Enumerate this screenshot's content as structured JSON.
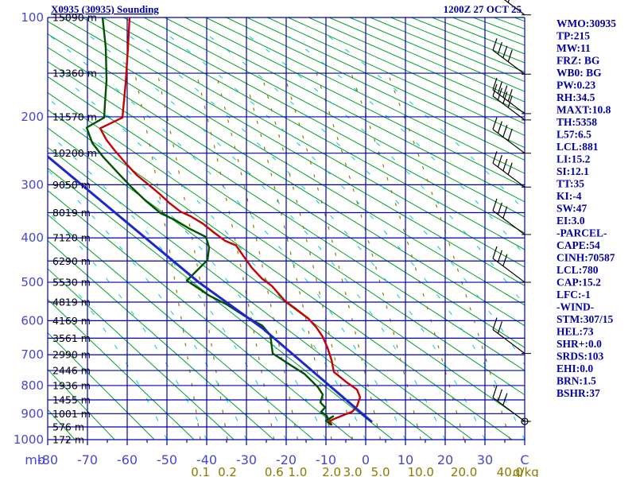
{
  "title": "X0935 (30935) Sounding",
  "datetime": "1200Z 27 OCT 25",
  "panel": {
    "lines": [
      "WMO:30935",
      "TP:215",
      "MW:11",
      "FRZ: BG",
      "WB0: BG",
      "PW:0.23",
      "RH:34.5",
      "MAXT:10.8",
      "TH:5358",
      "L57:6.5",
      "LCL:881",
      "LI:15.2",
      "SI:12.1",
      "TT:35",
      "KI:-4",
      "SW:47",
      "EI:3.0",
      "-PARCEL-",
      "CAPE:54",
      "CINH:70587",
      "LCL:780",
      "CAP:15.2",
      "LFC:-1",
      "-WIND-",
      "STM:307/15",
      "HEL:73",
      "SHR+:0.0",
      "SRDS:103",
      "EHI:0.0",
      "BRN:1.5",
      "BSHR:37"
    ]
  },
  "chart_data": {
    "type": "line",
    "diagram": "stuve-sounding",
    "plot": {
      "x0": 60,
      "x1": 660,
      "y0": 22,
      "y1": 553
    },
    "axes": {
      "pressure_mb": {
        "label": "mb",
        "min": 100,
        "max": 1000,
        "kappa": 0.286,
        "line_step": 50,
        "major_labels": [
          100,
          200,
          300,
          400,
          500,
          600,
          700,
          800,
          900,
          1000
        ]
      },
      "temperature_c": {
        "unit_label": "C",
        "min": -80,
        "max": 40,
        "tick_step": 10,
        "tick_labels": [
          -80,
          -70,
          -60,
          -50,
          -40,
          -30,
          -20,
          -10,
          0,
          10,
          20,
          30
        ]
      }
    },
    "height_labels": [
      [
        100,
        "15090 m"
      ],
      [
        150,
        "13360 m"
      ],
      [
        200,
        "11570 m"
      ],
      [
        250,
        "10200 m"
      ],
      [
        300,
        "9050 m"
      ],
      [
        350,
        "8019 m"
      ],
      [
        400,
        "7120 m"
      ],
      [
        450,
        "6290 m"
      ],
      [
        500,
        "5530 m"
      ],
      [
        550,
        "4819 m"
      ],
      [
        600,
        "4169 m"
      ],
      [
        650,
        "3561 m"
      ],
      [
        700,
        "2990 m"
      ],
      [
        750,
        "2446 m"
      ],
      [
        800,
        "1936 m"
      ],
      [
        850,
        "1455 m"
      ],
      [
        900,
        "1001 m"
      ],
      [
        950,
        "576 m"
      ],
      [
        1000,
        "172 m"
      ]
    ],
    "mixing_ratio": {
      "unit": "g/kg",
      "values": [
        0.1,
        0.2,
        0.6,
        1.0,
        2.0,
        3.0,
        5.0,
        10.0,
        20.0,
        40.0
      ],
      "labels": [
        "0.1",
        "0.2",
        "0.6",
        "1.0",
        "2.0",
        "3.0",
        "5.0",
        "10.0",
        "20.0",
        "40.0"
      ]
    },
    "dry_adiabats": {
      "theta_start": 200,
      "theta_end": 600,
      "step": 10
    },
    "moist_adiabats": {
      "surface_x_start": 210,
      "surface_x_end": 860,
      "step": 50,
      "k1": 0.45,
      "k2": 0.45
    },
    "series": [
      {
        "name": "temperature",
        "color": "#c80000",
        "width": 2.4,
        "points": [
          [
            -59.4,
            100
          ],
          [
            -59.8,
            125
          ],
          [
            -60.4,
            161
          ],
          [
            -61.2,
            201
          ],
          [
            -66.8,
            215
          ],
          [
            -65.2,
            231
          ],
          [
            -63,
            247
          ],
          [
            -60.4,
            265
          ],
          [
            -57.6,
            284
          ],
          [
            -54.6,
            300
          ],
          [
            -52,
            315
          ],
          [
            -49.4,
            332
          ],
          [
            -46.6,
            348
          ],
          [
            -44,
            357
          ],
          [
            -41,
            371
          ],
          [
            -38,
            390
          ],
          [
            -35.4,
            406
          ],
          [
            -32.6,
            416
          ],
          [
            -30.6,
            441
          ],
          [
            -28.6,
            466
          ],
          [
            -26,
            492
          ],
          [
            -23.6,
            509
          ],
          [
            -20.4,
            546
          ],
          [
            -17.2,
            571
          ],
          [
            -14.4,
            594
          ],
          [
            -12.4,
            619
          ],
          [
            -10.8,
            646
          ],
          [
            -9.6,
            679
          ],
          [
            -8.6,
            716
          ],
          [
            -8,
            755
          ],
          [
            -5,
            787
          ],
          [
            -2.2,
            814
          ],
          [
            -1.4,
            841
          ],
          [
            -2.2,
            873
          ],
          [
            -3.4,
            893
          ],
          [
            -6,
            908
          ],
          [
            -8,
            920
          ],
          [
            -9.2,
            929
          ],
          [
            -8.6,
            941
          ]
        ]
      },
      {
        "name": "dewpoint",
        "color": "#005200",
        "width": 2.4,
        "points": [
          [
            -66.2,
            100
          ],
          [
            -65.4,
            125
          ],
          [
            -65.2,
            157
          ],
          [
            -65.6,
            184
          ],
          [
            -65.8,
            201
          ],
          [
            -70.2,
            214
          ],
          [
            -68.8,
            235
          ],
          [
            -66,
            256
          ],
          [
            -62.4,
            280
          ],
          [
            -58.8,
            305
          ],
          [
            -55.2,
            329
          ],
          [
            -51.6,
            351
          ],
          [
            -48,
            364
          ],
          [
            -44.6,
            380
          ],
          [
            -40.2,
            398
          ],
          [
            -39.4,
            420
          ],
          [
            -39.8,
            448
          ],
          [
            -45,
            496
          ],
          [
            -39.4,
            533
          ],
          [
            -35,
            556
          ],
          [
            -30.6,
            586
          ],
          [
            -26,
            614
          ],
          [
            -24,
            641
          ],
          [
            -23.4,
            696
          ],
          [
            -22.4,
            704
          ],
          [
            -18.6,
            735
          ],
          [
            -15.4,
            761
          ],
          [
            -12,
            806
          ],
          [
            -10.8,
            831
          ],
          [
            -11.4,
            859
          ],
          [
            -10.2,
            877
          ],
          [
            -11.2,
            893
          ],
          [
            -9.8,
            908
          ],
          [
            -9.4,
            922
          ],
          [
            -8.2,
            910
          ],
          [
            -10,
            926
          ],
          [
            -8.8,
            941
          ]
        ]
      },
      {
        "name": "parcel",
        "color": "#1c28c8",
        "width": 3,
        "points": [
          [
            -80,
            255
          ],
          [
            -42,
            500
          ],
          [
            -26,
            621
          ],
          [
            1.4,
            929
          ]
        ]
      }
    ],
    "wind_barbs": [
      {
        "p": 98,
        "feathers": 4
      },
      {
        "p": 151,
        "feathers": 4
      },
      {
        "p": 196,
        "feathers": 4
      },
      {
        "p": 204,
        "feathers": 4
      },
      {
        "p": 250,
        "feathers": 4
      },
      {
        "p": 304,
        "feathers": 4
      },
      {
        "p": 393,
        "feathers": 3
      },
      {
        "p": 500,
        "feathers": 3
      },
      {
        "p": 696,
        "feathers": 2
      },
      {
        "p": 929,
        "feathers": 3,
        "circle": true
      }
    ]
  },
  "colors": {
    "grid": "#0000b4",
    "dry_adiabat": "#00a028",
    "moist_adiabat": "#00c8d2",
    "mixing_ratio": "#8c7800",
    "axis_label": "#4646d2",
    "height_label": "#000000",
    "title": "#0000a0",
    "panel_text": "#0000a0",
    "barb": "#000000"
  }
}
